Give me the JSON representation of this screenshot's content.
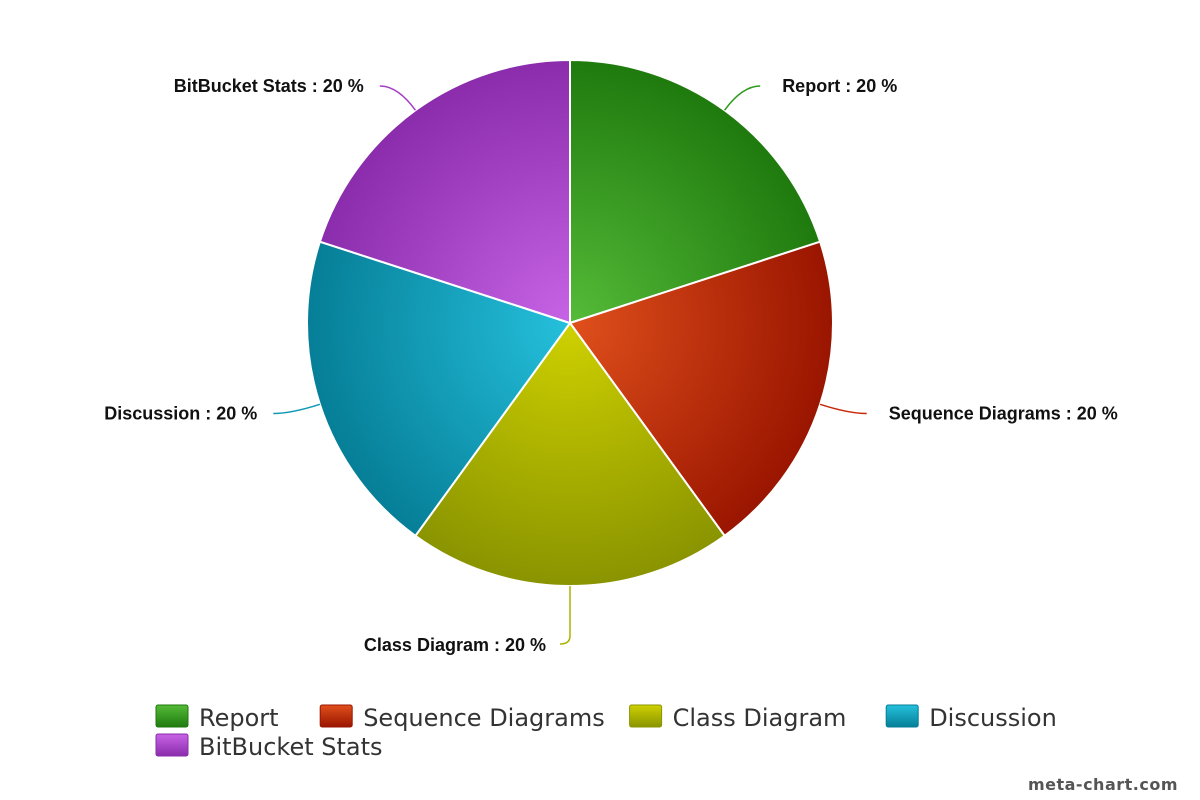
{
  "chart_data": {
    "type": "pie",
    "categories": [
      "Report",
      "Sequence Diagrams",
      "Class Diagram",
      "Discussion",
      "BitBucket Stats"
    ],
    "values": [
      20,
      20,
      20,
      20,
      20
    ],
    "data_labels": [
      "Report : 20 %",
      "Sequence Diagrams : 20 %",
      "Class Diagram : 20 %",
      "Discussion : 20 %",
      "BitBucket Stats : 20 %"
    ],
    "colors": [
      "#2e9a1c",
      "#c62a08",
      "#aab300",
      "#1199b4",
      "#a53ec4"
    ],
    "dark_colors": [
      "#1f7a0e",
      "#9a1500",
      "#8a9400",
      "#067e97",
      "#8a2cab"
    ],
    "light_colors": [
      "#55bb38",
      "#e0501c",
      "#cfd100",
      "#25c0dc",
      "#c764e6"
    ],
    "start_angle_deg": 0,
    "direction": "clockwise",
    "legend_position": "bottom",
    "title": ""
  },
  "watermark": "meta-chart.com"
}
